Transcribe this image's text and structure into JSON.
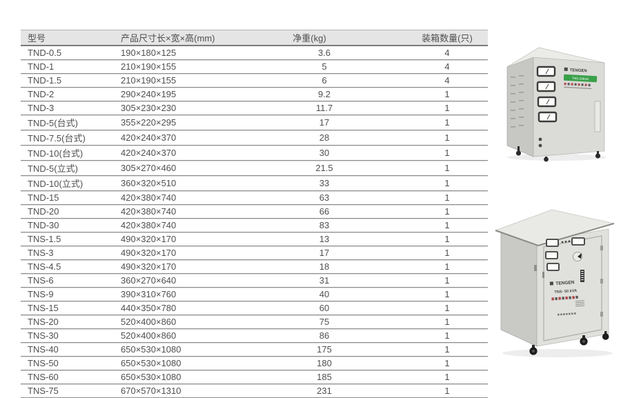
{
  "table": {
    "columns": [
      "型号",
      "产品尺寸长×宽×高(mm)",
      "净重(kg)",
      "装箱数量(只)"
    ],
    "rows": [
      {
        "model": "TND-0.5",
        "size": "190×180×125",
        "weight": "3.6",
        "qty": "4"
      },
      {
        "model": "TND-1",
        "size": "210×190×155",
        "weight": "5",
        "qty": "4"
      },
      {
        "model": "TND-1.5",
        "size": "210×190×155",
        "weight": "6",
        "qty": "4"
      },
      {
        "model": "TND-2",
        "size": "290×240×195",
        "weight": "9.2",
        "qty": "1"
      },
      {
        "model": "TND-3",
        "size": "305×230×230",
        "weight": "11.7",
        "qty": "1"
      },
      {
        "model": "TND-5(台式)",
        "size": "355×220×295",
        "weight": "17",
        "qty": "1"
      },
      {
        "model": "TND-7.5(台式)",
        "size": "420×240×370",
        "weight": "28",
        "qty": "1"
      },
      {
        "model": "TND-10(台式)",
        "size": "420×240×370",
        "weight": "30",
        "qty": "1"
      },
      {
        "model": "TND-5(立式)",
        "size": "305×270×460",
        "weight": "21.5",
        "qty": "1"
      },
      {
        "model": "TND-10(立式)",
        "size": "360×320×510",
        "weight": "33",
        "qty": "1"
      },
      {
        "model": "TND-15",
        "size": "420×380×740",
        "weight": "63",
        "qty": "1"
      },
      {
        "model": "TND-20",
        "size": "420×380×740",
        "weight": "66",
        "qty": "1"
      },
      {
        "model": "TND-30",
        "size": "420×380×740",
        "weight": "83",
        "qty": "1"
      },
      {
        "model": "TNS-1.5",
        "size": "490×320×170",
        "weight": "13",
        "qty": "1"
      },
      {
        "model": "TNS-3",
        "size": "490×320×170",
        "weight": "17",
        "qty": "1"
      },
      {
        "model": "TNS-4.5",
        "size": "490×320×170",
        "weight": "18",
        "qty": "1"
      },
      {
        "model": "TNS-6",
        "size": "360×270×640",
        "weight": "31",
        "qty": "1"
      },
      {
        "model": "TNS-9",
        "size": "390×310×760",
        "weight": "40",
        "qty": "1"
      },
      {
        "model": "TNS-15",
        "size": "440×350×780",
        "weight": "60",
        "qty": "1"
      },
      {
        "model": "TNS-20",
        "size": "520×400×860",
        "weight": "75",
        "qty": "1"
      },
      {
        "model": "TNS-30",
        "size": "520×400×860",
        "weight": "86",
        "qty": "1"
      },
      {
        "model": "TNS-40",
        "size": "650×530×1080",
        "weight": "175",
        "qty": "1"
      },
      {
        "model": "TNS-50",
        "size": "650×530×1080",
        "weight": "180",
        "qty": "1"
      },
      {
        "model": "TNS-60",
        "size": "650×530×1080",
        "weight": "185",
        "qty": "1"
      },
      {
        "model": "TNS-75",
        "size": "670×570×1310",
        "weight": "231",
        "qty": "1"
      }
    ]
  },
  "products": [
    {
      "brand": "TENGEN",
      "banner": "TNS-20kVA"
    },
    {
      "brand": "TENGEN",
      "model": "TNS- 50 kVA"
    }
  ],
  "colors": {
    "header_bg": "#e5e5e5",
    "row_line": "#8c8c8c",
    "text": "#4f4f4f",
    "banner_green": "#3aa04a",
    "cabinet_front": "#dbdbd8",
    "cabinet_side": "#c7c7c4",
    "cabinet_top": "#ebebe8"
  }
}
